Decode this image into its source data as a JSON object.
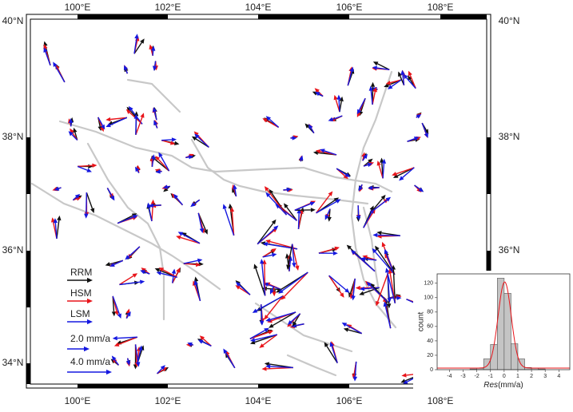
{
  "map": {
    "lon_labels": [
      "100°E",
      "102°E",
      "104°E",
      "106°E",
      "108°E"
    ],
    "lat_labels": [
      "40°N",
      "38°N",
      "36°N",
      "34°N"
    ],
    "legend": {
      "models": [
        "RRM",
        "HSM",
        "LSM"
      ],
      "scales": [
        "2.0 mm/a",
        "4.0 mm/a"
      ]
    }
  },
  "histogram": {
    "ylabel": "count",
    "xlabel_var": "Res",
    "xlabel_unit": "(mm/a)",
    "bins": [
      -2.5,
      -2,
      -1.5,
      -1,
      -0.5,
      0,
      0.5,
      1,
      1.5,
      2,
      2.5,
      3
    ],
    "counts": [
      1,
      2,
      15,
      35,
      127,
      106,
      36,
      15,
      3,
      2,
      1
    ],
    "xlim": [
      -4.9,
      4.8
    ],
    "ylim": [
      0,
      133
    ],
    "xticks": [
      -4,
      -3,
      -2,
      -1,
      0,
      1,
      2,
      3,
      4
    ],
    "yticks": [
      0,
      20,
      40,
      60,
      80,
      100,
      120
    ]
  }
}
